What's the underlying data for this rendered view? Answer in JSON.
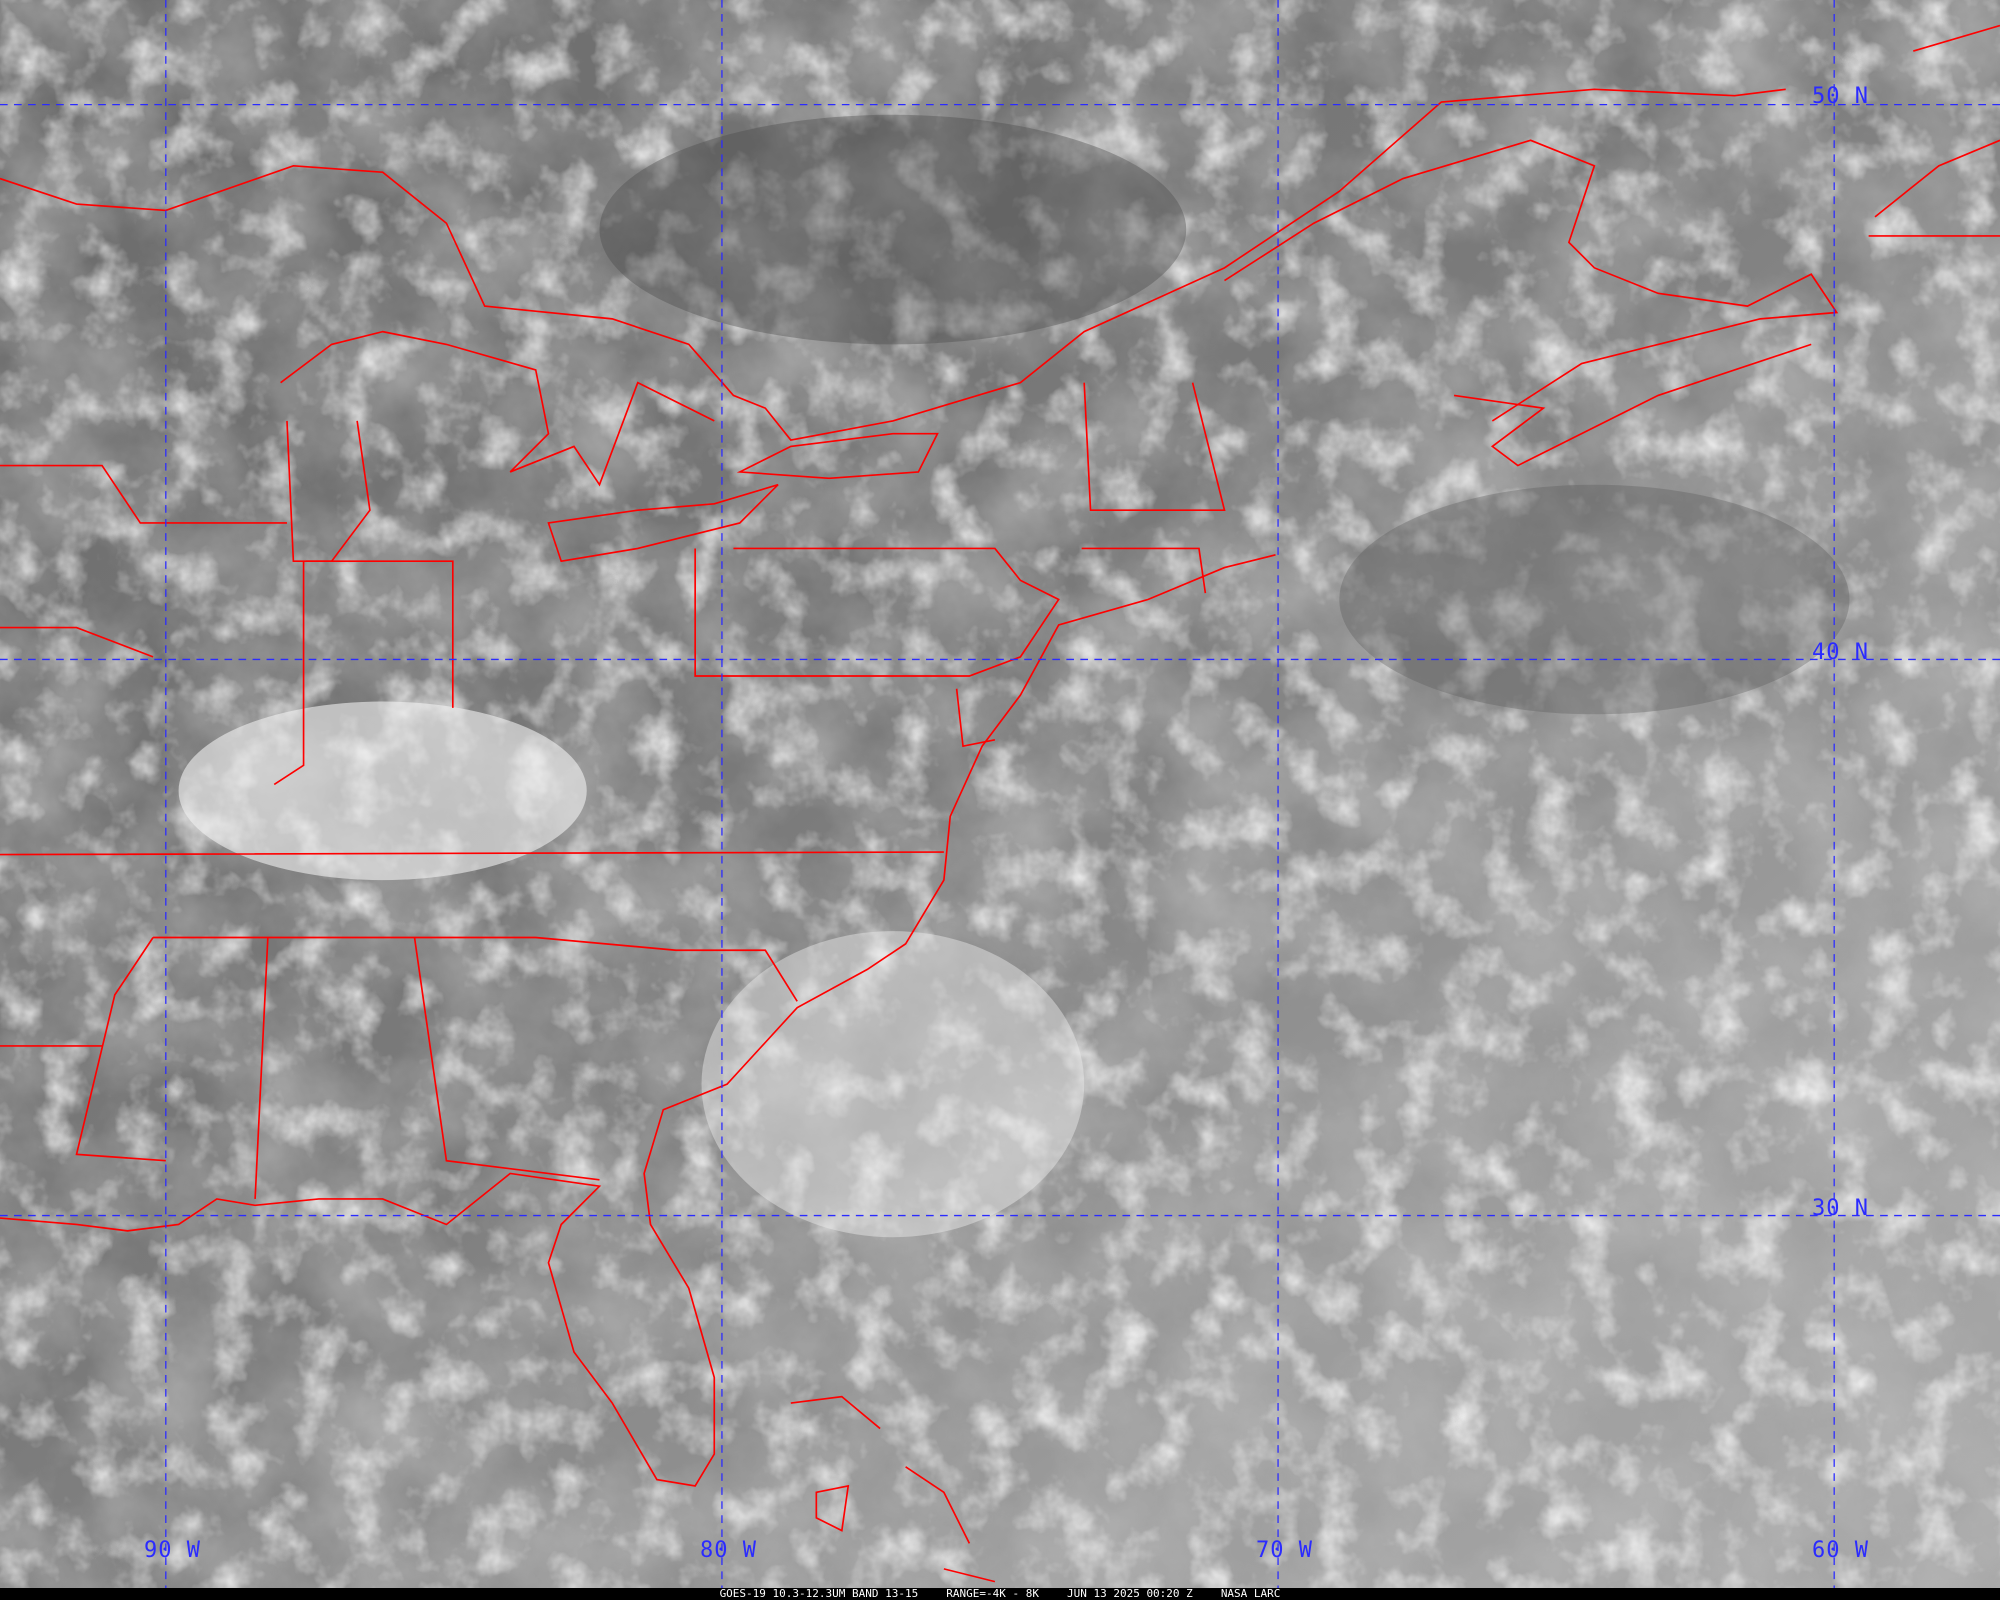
{
  "map": {
    "grid_color": "#2b2bff",
    "border_color": "#ff0000",
    "longitude_labels": [
      "90 W",
      "80 W",
      "70 W",
      "60 W"
    ],
    "latitude_labels": [
      "50 N",
      "40 N",
      "30 N"
    ]
  },
  "caption": {
    "product": "GOES-19 10.3-12.3UM BAND 13-15",
    "range": "RANGE=-4K - 8K",
    "datetime": "JUN 13 2025 00:20 Z",
    "source": "NASA LARC"
  }
}
